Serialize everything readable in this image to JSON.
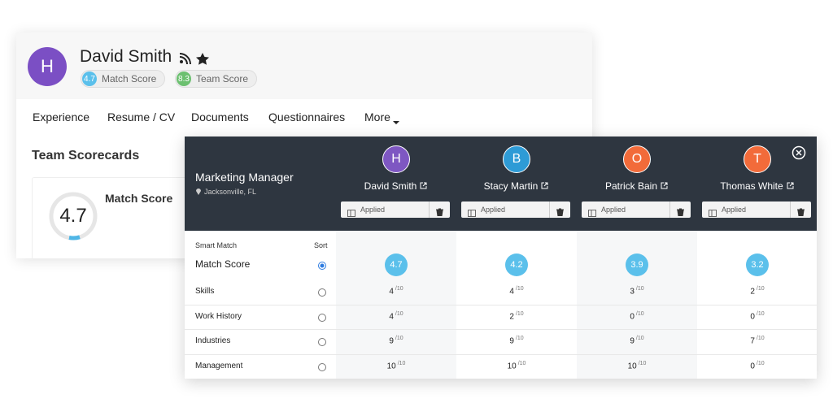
{
  "profile": {
    "initial": "H",
    "name": "David Smith",
    "match_score": 4.7,
    "match_label": "Match Score",
    "team_score": 8.3,
    "team_label": "Team Score"
  },
  "tabs": [
    "Experience",
    "Resume / CV",
    "Documents",
    "Questionnaires",
    "More"
  ],
  "scorecards": {
    "title": "Team Scorecards",
    "score": 4.7,
    "label": "Match Score"
  },
  "comparison": {
    "job_title": "Marketing Manager",
    "location": "Jacksonville, FL",
    "candidates": [
      {
        "initial": "H",
        "name": "David Smith",
        "status": "Applied",
        "color": "#7e57c2"
      },
      {
        "initial": "B",
        "name": "Stacy Martin",
        "status": "Applied",
        "color": "#2e9bd6"
      },
      {
        "initial": "O",
        "name": "Patrick Bain",
        "status": "Applied",
        "color": "#f26b3a"
      },
      {
        "initial": "T",
        "name": "Thomas White",
        "status": "Applied",
        "color": "#f26b3a"
      }
    ],
    "smart_match": "Smart Match",
    "sort": "Sort",
    "out_of": "/10",
    "score_row": {
      "label": "Match Score",
      "values": [
        4.7,
        4.2,
        3.9,
        3.2
      ]
    },
    "rows": [
      {
        "label": "Skills",
        "values": [
          4,
          4,
          3,
          2
        ]
      },
      {
        "label": "Work History",
        "values": [
          4,
          2,
          0,
          0
        ]
      },
      {
        "label": "Industries",
        "values": [
          9,
          9,
          9,
          7
        ]
      },
      {
        "label": "Management",
        "values": [
          10,
          10,
          10,
          0
        ]
      }
    ]
  }
}
